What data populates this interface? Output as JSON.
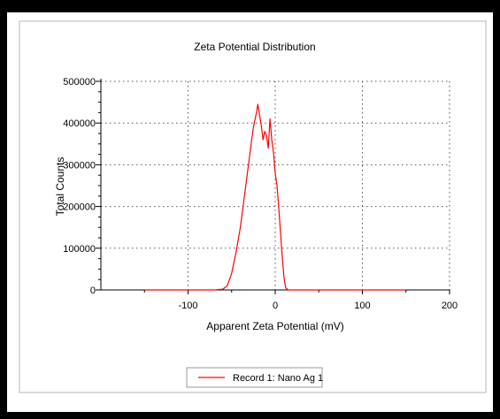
{
  "chart_data": {
    "type": "line",
    "title": "Zeta Potential Distribution",
    "xlabel": "Apparent Zeta Potential (mV)",
    "ylabel": "Total Counts",
    "xlim": [
      -200,
      200
    ],
    "ylim": [
      0,
      500000
    ],
    "x_ticks": [
      -100,
      0,
      100,
      200
    ],
    "y_ticks": [
      0,
      100000,
      200000,
      300000,
      400000,
      500000
    ],
    "grid": true,
    "legend_position": "bottom-center",
    "series": [
      {
        "name": "Record 1: Nano Ag 1",
        "color": "#ff0000",
        "x": [
          -150,
          -70,
          -60,
          -55,
          -50,
          -45,
          -40,
          -35,
          -30,
          -27,
          -25,
          -23,
          -21,
          -20,
          -18,
          -16,
          -14,
          -12,
          -10,
          -8,
          -6,
          -4,
          -2,
          0,
          2,
          4,
          6,
          8,
          10,
          12,
          15,
          20,
          30,
          150
        ],
        "y": [
          0,
          0,
          2000,
          10000,
          40000,
          90000,
          150000,
          230000,
          310000,
          360000,
          390000,
          410000,
          430000,
          445000,
          420000,
          395000,
          360000,
          380000,
          370000,
          340000,
          410000,
          360000,
          330000,
          280000,
          250000,
          200000,
          140000,
          80000,
          30000,
          5000,
          0,
          0,
          0,
          0
        ]
      }
    ]
  }
}
